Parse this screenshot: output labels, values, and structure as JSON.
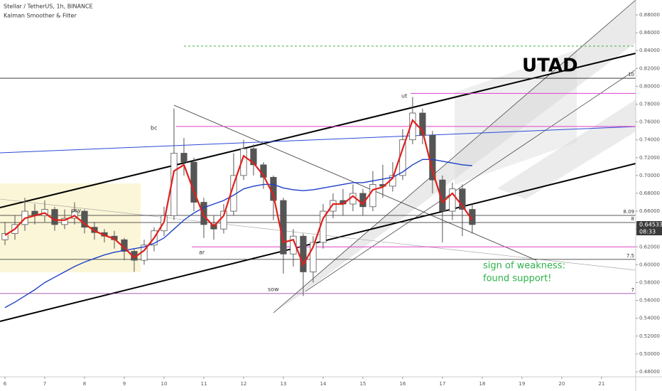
{
  "chart_data": {
    "type": "candlestick",
    "title": "Stellar / TetherUS, 1h, BINANCE",
    "subtitle": "Kalman Smoother & Filter",
    "x": [
      6,
      6.25,
      6.5,
      6.75,
      7,
      7.25,
      7.5,
      7.75,
      8,
      8.25,
      8.5,
      8.75,
      9,
      9.25,
      9.5,
      9.75,
      10,
      10.25,
      10.5,
      10.75,
      11,
      11.25,
      11.5,
      11.75,
      12,
      12.25,
      12.5,
      12.75,
      13,
      13.25,
      13.5,
      13.75,
      14,
      14.25,
      14.5,
      14.75,
      15,
      15.25,
      15.5,
      15.75,
      16,
      16.25,
      16.5,
      16.75,
      17,
      17.25,
      17.5,
      17.75
    ],
    "open": [
      0.628,
      0.635,
      0.645,
      0.66,
      0.655,
      0.662,
      0.645,
      0.652,
      0.66,
      0.642,
      0.636,
      0.632,
      0.628,
      0.615,
      0.605,
      0.622,
      0.638,
      0.655,
      0.725,
      0.715,
      0.67,
      0.645,
      0.64,
      0.66,
      0.7,
      0.73,
      0.712,
      0.698,
      0.672,
      0.612,
      0.632,
      0.592,
      0.625,
      0.66,
      0.672,
      0.668,
      0.68,
      0.665,
      0.69,
      0.688,
      0.7,
      0.74,
      0.77,
      0.745,
      0.695,
      0.66,
      0.685,
      0.662
    ],
    "high": [
      0.648,
      0.655,
      0.675,
      0.668,
      0.672,
      0.665,
      0.662,
      0.67,
      0.662,
      0.648,
      0.64,
      0.638,
      0.63,
      0.618,
      0.628,
      0.642,
      0.665,
      0.775,
      0.742,
      0.72,
      0.675,
      0.655,
      0.668,
      0.725,
      0.74,
      0.735,
      0.715,
      0.7,
      0.675,
      0.64,
      0.635,
      0.632,
      0.668,
      0.68,
      0.685,
      0.69,
      0.685,
      0.705,
      0.712,
      0.715,
      0.752,
      0.788,
      0.775,
      0.75,
      0.7,
      0.692,
      0.69,
      0.668
    ],
    "low": [
      0.622,
      0.628,
      0.638,
      0.645,
      0.648,
      0.638,
      0.64,
      0.645,
      0.635,
      0.628,
      0.625,
      0.618,
      0.605,
      0.592,
      0.6,
      0.615,
      0.632,
      0.65,
      0.7,
      0.66,
      0.63,
      0.628,
      0.635,
      0.655,
      0.695,
      0.7,
      0.685,
      0.65,
      0.59,
      0.598,
      0.565,
      0.58,
      0.618,
      0.652,
      0.655,
      0.66,
      0.655,
      0.66,
      0.675,
      0.682,
      0.695,
      0.735,
      0.735,
      0.68,
      0.625,
      0.65,
      0.632,
      0.635
    ],
    "close": [
      0.635,
      0.645,
      0.66,
      0.655,
      0.662,
      0.645,
      0.652,
      0.66,
      0.642,
      0.636,
      0.632,
      0.628,
      0.615,
      0.605,
      0.622,
      0.638,
      0.655,
      0.725,
      0.715,
      0.67,
      0.645,
      0.64,
      0.66,
      0.7,
      0.73,
      0.712,
      0.698,
      0.672,
      0.612,
      0.632,
      0.592,
      0.625,
      0.66,
      0.672,
      0.668,
      0.68,
      0.665,
      0.69,
      0.688,
      0.7,
      0.74,
      0.77,
      0.745,
      0.695,
      0.66,
      0.685,
      0.662,
      0.645
    ],
    "up_color": "#ffffff",
    "down_color": "#555555",
    "overlays": [
      {
        "color": "#1e3fc8",
        "values": [
          0.552,
          0.558,
          0.565,
          0.572,
          0.58,
          0.586,
          0.592,
          0.598,
          0.603,
          0.607,
          0.611,
          0.614,
          0.616,
          0.618,
          0.62,
          0.624,
          0.63,
          0.64,
          0.65,
          0.658,
          0.664,
          0.668,
          0.672,
          0.678,
          0.685,
          0.688,
          0.69,
          0.69,
          0.686,
          0.684,
          0.683,
          0.684,
          0.686,
          0.688,
          0.69,
          0.692,
          0.692,
          0.694,
          0.696,
          0.698,
          0.704,
          0.712,
          0.718,
          0.718,
          0.716,
          0.714,
          0.712,
          0.711
        ]
      },
      {
        "color": "#e0201c",
        "values": [
          0.633,
          0.64,
          0.652,
          0.655,
          0.658,
          0.65,
          0.65,
          0.655,
          0.646,
          0.638,
          0.633,
          0.629,
          0.619,
          0.608,
          0.616,
          0.63,
          0.648,
          0.705,
          0.712,
          0.682,
          0.655,
          0.643,
          0.655,
          0.69,
          0.722,
          0.714,
          0.7,
          0.678,
          0.625,
          0.628,
          0.6,
          0.62,
          0.652,
          0.668,
          0.668,
          0.677,
          0.668,
          0.684,
          0.687,
          0.697,
          0.73,
          0.762,
          0.75,
          0.705,
          0.67,
          0.68,
          0.666,
          0.65
        ]
      }
    ],
    "xlim": [
      5.875,
      21.86
    ],
    "ylim": [
      0.4744,
      0.8967
    ],
    "xticks": [
      6,
      7,
      8,
      9,
      10,
      11,
      12,
      13,
      14,
      15,
      16,
      17,
      18,
      19,
      20,
      21
    ],
    "yticks": [
      {
        "value": 0.48,
        "label": "0.48000"
      },
      {
        "value": 0.5,
        "label": "0.50000"
      },
      {
        "value": 0.52,
        "label": "0.52000"
      },
      {
        "value": 0.54,
        "label": "0.54000"
      },
      {
        "value": 0.56,
        "label": "0.56000"
      },
      {
        "value": 0.58,
        "label": "0.58000"
      },
      {
        "value": 0.6,
        "label": "0.60000"
      },
      {
        "value": 0.62,
        "label": "0.62000"
      },
      {
        "value": 0.64,
        "label": "0.64000"
      },
      {
        "value": 0.66,
        "label": "0.66000"
      },
      {
        "value": 0.68,
        "label": "0.68000"
      },
      {
        "value": 0.7,
        "label": "0.70000"
      },
      {
        "value": 0.72,
        "label": "0.72000"
      },
      {
        "value": 0.74,
        "label": "0.74000"
      },
      {
        "value": 0.76,
        "label": "0.76000"
      },
      {
        "value": 0.78,
        "label": "0.78000"
      },
      {
        "value": 0.8,
        "label": "0.80000"
      },
      {
        "value": 0.82,
        "label": "0.82000"
      },
      {
        "value": 0.84,
        "label": "0.84000"
      },
      {
        "value": 0.86,
        "label": "0.86000"
      },
      {
        "value": 0.88,
        "label": "0.88000"
      }
    ],
    "levels": [
      {
        "value": 0.809,
        "label": "10",
        "color": "#222222"
      },
      {
        "value": 0.6553,
        "label": "8.09",
        "color": "#222222"
      },
      {
        "value": 0.6473,
        "label": "8",
        "color": "#222222"
      },
      {
        "value": 0.606,
        "label": "7.5",
        "color": "#222222"
      },
      {
        "value": 0.5677,
        "label": "7",
        "color": "#8a2a9a"
      }
    ],
    "hlines": [
      {
        "value": 0.845,
        "from": 10.5,
        "color": "#3cb043",
        "dashed": true
      },
      {
        "value": 0.792,
        "from": 16.2,
        "color": "#e040c8",
        "dashed": false
      },
      {
        "value": 0.755,
        "from": 10.3,
        "color": "#e040c8",
        "dashed": false
      },
      {
        "value": 0.62,
        "from": 10.7,
        "color": "#e040c8",
        "dashed": false
      }
    ],
    "last_price": 0.64533,
    "countdown": "08:33",
    "annotations": {
      "psy": "psy",
      "bc": "bc",
      "ar": "ar",
      "sow": "sow",
      "ut": "ut",
      "utad": "UTAD",
      "note": [
        "sign of weakness:",
        "found support!"
      ]
    }
  }
}
